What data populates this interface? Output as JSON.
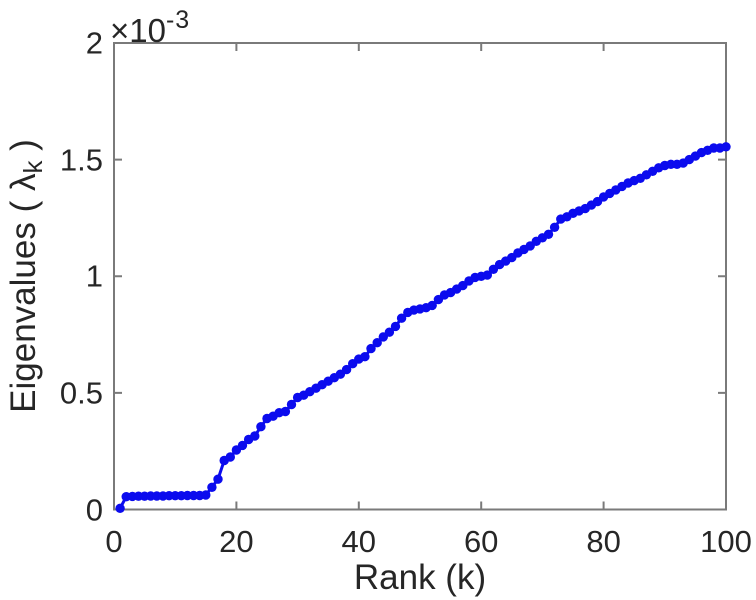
{
  "figure": {
    "background_color": "#ffffff",
    "axes_line_color": "#7a7a7a",
    "text_color": "#262626"
  },
  "chart_data": {
    "type": "line",
    "marker": "filled-circle",
    "line_color": "#0b0bee",
    "title": "",
    "xlabel": "Rank (k)",
    "ylabel_text": "Eigenvalues ( λk )",
    "ylabel_parts": {
      "prefix": "Eigenvalues ( ",
      "symbol": "λ",
      "subscript": "k",
      "suffix": " )"
    },
    "y_axis_offset_multiplier": "×10",
    "y_axis_offset_exponent": "-3",
    "y_unit_scale": 0.001,
    "xlim": [
      0,
      100
    ],
    "ylim": [
      0,
      2
    ],
    "xticks": [
      0,
      20,
      40,
      60,
      80,
      100
    ],
    "xtick_labels": [
      "0",
      "20",
      "40",
      "60",
      "80",
      "100"
    ],
    "yticks": [
      0,
      0.5,
      1,
      1.5,
      2
    ],
    "ytick_labels": [
      "0",
      "0.5",
      "1",
      "1.5",
      "2"
    ],
    "grid": false,
    "legend": null,
    "x_description": "Rank k = 1 to 100; x value of point i is i+1",
    "values_in_units_of_1e-3": [
      0.005,
      0.055,
      0.056,
      0.057,
      0.057,
      0.058,
      0.058,
      0.058,
      0.059,
      0.059,
      0.059,
      0.06,
      0.06,
      0.06,
      0.062,
      0.095,
      0.13,
      0.21,
      0.225,
      0.255,
      0.275,
      0.3,
      0.315,
      0.355,
      0.39,
      0.4,
      0.415,
      0.42,
      0.45,
      0.48,
      0.49,
      0.505,
      0.52,
      0.535,
      0.55,
      0.565,
      0.58,
      0.6,
      0.625,
      0.645,
      0.655,
      0.69,
      0.715,
      0.74,
      0.76,
      0.785,
      0.82,
      0.845,
      0.855,
      0.86,
      0.865,
      0.875,
      0.9,
      0.92,
      0.93,
      0.945,
      0.96,
      0.98,
      0.995,
      1.0,
      1.005,
      1.03,
      1.05,
      1.065,
      1.08,
      1.1,
      1.115,
      1.13,
      1.15,
      1.165,
      1.18,
      1.21,
      1.245,
      1.255,
      1.27,
      1.28,
      1.29,
      1.305,
      1.32,
      1.34,
      1.355,
      1.37,
      1.385,
      1.4,
      1.41,
      1.42,
      1.435,
      1.45,
      1.465,
      1.475,
      1.48,
      1.48,
      1.485,
      1.5,
      1.515,
      1.53,
      1.54,
      1.55,
      1.55,
      1.555
    ]
  }
}
